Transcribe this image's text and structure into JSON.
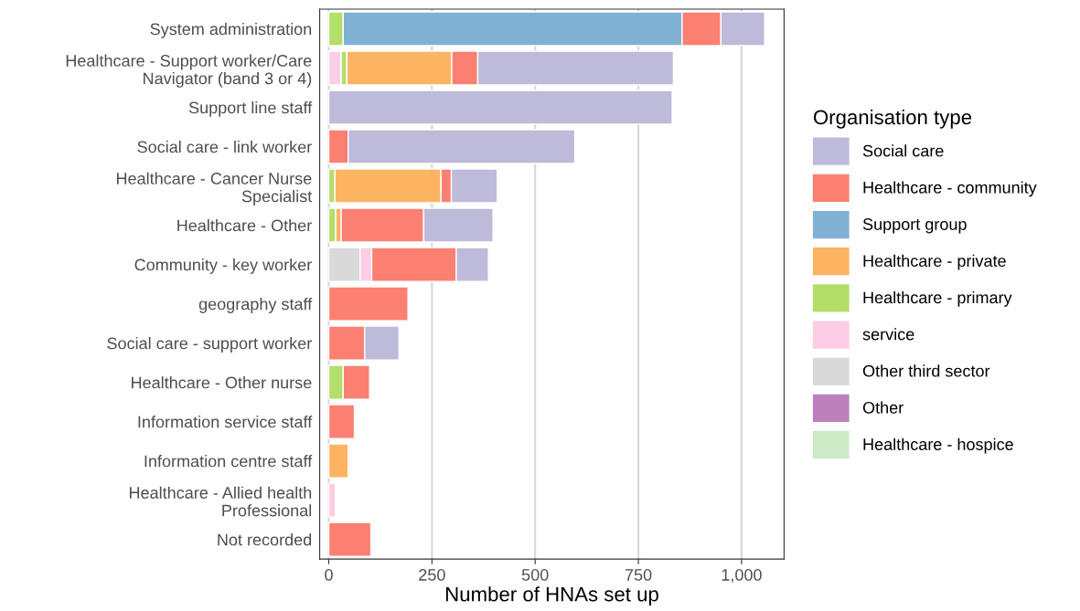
{
  "chart_data": {
    "type": "bar",
    "orientation": "horizontal",
    "stacked": true,
    "xlabel": "Number of HNAs set up",
    "legend_title": "Organisation type",
    "legend": "right",
    "grid": "x",
    "categories": [
      "System administration",
      "Healthcare - Support worker/Care\nNavigator (band 3 or 4)",
      "Support line staff",
      "Social care - link worker",
      "Healthcare - Cancer Nurse\nSpecialist",
      "Healthcare - Other",
      "Community - key worker",
      "geography staff",
      "Social care - support worker",
      "Healthcare - Other nurse",
      "Information service staff",
      "Information centre staff",
      "Healthcare - Allied health\nProfessional",
      "Not recorded"
    ],
    "xlim": [
      -22,
      1103
    ],
    "xticks": [
      0,
      250,
      500,
      750,
      {
        "value": 1000,
        "label": "1,000"
      }
    ],
    "series": [
      {
        "name": "Healthcare - hospice",
        "color": "#ccebc5",
        "values": [
          null,
          null,
          null,
          null,
          null,
          null,
          null,
          null,
          null,
          null,
          null,
          null,
          null,
          null
        ]
      },
      {
        "name": "Other",
        "color": "#bc80bd",
        "values": [
          null,
          null,
          null,
          null,
          null,
          null,
          null,
          null,
          null,
          null,
          null,
          null,
          null,
          null
        ]
      },
      {
        "name": "Other third sector",
        "color": "#d9d9d9",
        "values": [
          0,
          0,
          0,
          0,
          0,
          0,
          76,
          0,
          0,
          0,
          0,
          0,
          0,
          0
        ]
      },
      {
        "name": "service",
        "color": "#fccde5",
        "values": [
          0,
          30,
          0,
          0,
          0,
          0,
          28,
          0,
          0,
          0,
          0,
          0,
          16,
          0
        ]
      },
      {
        "name": "Healthcare - primary",
        "color": "#b3de69",
        "values": [
          35,
          14,
          0,
          0,
          15,
          17,
          0,
          0,
          0,
          35,
          0,
          0,
          0,
          0
        ]
      },
      {
        "name": "Healthcare - private",
        "color": "#fdb462",
        "values": [
          0,
          254,
          0,
          0,
          257,
          13,
          0,
          0,
          0,
          0,
          0,
          47,
          0,
          0
        ]
      },
      {
        "name": "Support group",
        "color": "#80b1d3",
        "values": [
          821,
          0,
          0,
          0,
          0,
          0,
          0,
          0,
          0,
          0,
          0,
          0,
          0,
          0
        ]
      },
      {
        "name": "Healthcare - community",
        "color": "#fb8072",
        "values": [
          94,
          63,
          0,
          47,
          25,
          200,
          205,
          192,
          87,
          64,
          62,
          0,
          0,
          102
        ]
      },
      {
        "name": "Social care",
        "color": "#bebada",
        "values": [
          106,
          474,
          832,
          549,
          111,
          168,
          78,
          0,
          83,
          0,
          0,
          0,
          0,
          0
        ]
      }
    ]
  }
}
